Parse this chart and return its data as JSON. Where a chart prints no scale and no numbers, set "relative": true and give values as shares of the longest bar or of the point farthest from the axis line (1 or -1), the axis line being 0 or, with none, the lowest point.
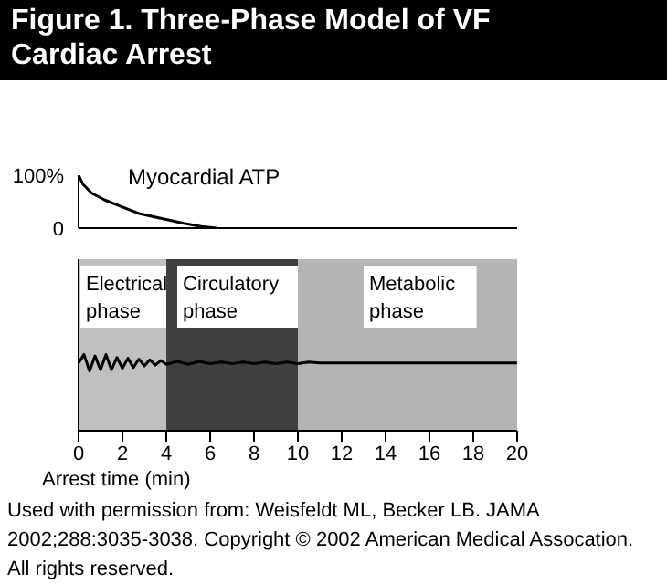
{
  "chart_data": [
    {
      "type": "line",
      "title": "Figure 1. Three-Phase Model of VF Cardiac Arrest",
      "series": [
        {
          "name": "Myocardial ATP",
          "color": "#000000",
          "x": [
            0,
            0.2,
            0.6,
            1.2,
            2,
            2.8,
            3.7,
            4.8,
            5.6,
            6.3
          ],
          "values": [
            100,
            83,
            66,
            53,
            40,
            27,
            19,
            9,
            3,
            0
          ]
        }
      ],
      "xlim": [
        0,
        20
      ],
      "ylim": [
        0,
        100
      ],
      "yticks": [
        {
          "value": 0,
          "label": "0"
        },
        {
          "value": 100,
          "label": "100%"
        }
      ],
      "tick_labels": "y",
      "grid": false,
      "legend": false,
      "marker": "none",
      "line_style": "solid"
    },
    {
      "type": "line",
      "relative": true,
      "series": [
        {
          "color": "#000000",
          "x": [
            0,
            0.25,
            0.5,
            0.75,
            1,
            1.25,
            1.5,
            1.75,
            2,
            2.25,
            2.5,
            2.75,
            3,
            3.25,
            3.5,
            3.75,
            4,
            4.5,
            5,
            5.5,
            6,
            6.5,
            7,
            7.5,
            8,
            8.5,
            9,
            9.5,
            10,
            10.5,
            11,
            20
          ],
          "values": [
            0.89,
            1,
            0.78,
            0.98,
            0.8,
            1,
            0.8,
            0.96,
            0.82,
            0.95,
            0.83,
            0.94,
            0.85,
            0.93,
            0.86,
            0.92,
            0.87,
            0.91,
            0.87,
            0.91,
            0.88,
            0.9,
            0.88,
            0.9,
            0.88,
            0.9,
            0.88,
            0.9,
            0.88,
            0.9,
            0.89,
            0.89
          ]
        }
      ],
      "xlim": [
        0,
        20
      ],
      "xticks": [
        0,
        2,
        4,
        6,
        8,
        10,
        12,
        14,
        16,
        18,
        20
      ],
      "xlabel": "Arrest time (min)",
      "legend": false,
      "marker": "none",
      "line_style": "solid",
      "bands": [
        {
          "axis": "x",
          "from": 0,
          "to": 4,
          "label": "Electrical phase",
          "color": "#c0c0c0"
        },
        {
          "axis": "x",
          "from": 4,
          "to": 10,
          "label": "Circulatory phase",
          "color": "#404040"
        },
        {
          "axis": "x",
          "from": 10,
          "to": 20,
          "label": "Metabolic phase",
          "color": "#b4b4b4"
        }
      ],
      "annotations": [
        "Used with permission from: Weisfeldt ML, Becker LB. JAMA 2002;288:3035-3038. Copyright © 2002 American Medical Assocation. All rights reserved."
      ]
    }
  ]
}
